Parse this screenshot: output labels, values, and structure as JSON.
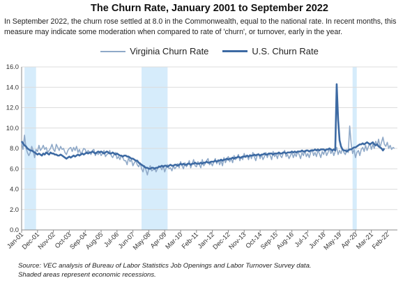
{
  "header": {
    "title": "The Churn Rate, January 2001 to September 2022",
    "subtitle": "In September 2022, the churn rose settled at 8.0 in the Commonwealth, equal to the national rate. In recent months, this measure may indicate some moderation when compared to rate of 'churn', or turnover, early in the year."
  },
  "footnote": {
    "line1": "Source: VEC analysis of Bureau of Labor Statistics Job Openings and Labor Turnover Survey data.",
    "line2": "Shaded areas represent economic recessions."
  },
  "colors": {
    "virginia": "#8fa9c8",
    "us": "#3d6aa3",
    "recession": "#d6ecfb",
    "axis": "#888888"
  },
  "chart_data": {
    "type": "line",
    "ylim": [
      0,
      16
    ],
    "yticks": [
      "0.0",
      "2.0",
      "4.0",
      "6.0",
      "8.0",
      "10.0",
      "12.0",
      "14.0",
      "16.0"
    ],
    "start": "2001-01",
    "end": "2022-09",
    "xtick_labels": [
      "Jan-01",
      "Dec-01",
      "Nov-02",
      "Oct-03",
      "Sep-04",
      "Aug-05",
      "Jul-06",
      "Jun-07",
      "May-08",
      "Apr-09",
      "Mar-10",
      "Feb-11",
      "Jan-12",
      "Dec-12",
      "Nov-13",
      "Oct-14",
      "Sep-15",
      "Aug-16",
      "Jul-17",
      "Jun-18",
      "May-19",
      "Apr-20",
      "Mar-21",
      "Feb-22"
    ],
    "recessions": [
      [
        "2001-03",
        "2001-11"
      ],
      [
        "2007-12",
        "2009-06"
      ],
      [
        "2020-02",
        "2020-04"
      ]
    ],
    "grid": true,
    "legend": "top-center",
    "series": [
      {
        "name": "Virginia Churn Rate",
        "values": [
          8.6,
          7.9,
          9.3,
          8.1,
          7.6,
          7.3,
          7.6,
          8.2,
          7.8,
          7.1,
          7.9,
          7.7,
          8.3,
          7.8,
          8.0,
          8.3,
          7.9,
          8.1,
          7.6,
          7.8,
          8.0,
          8.4,
          7.9,
          7.7,
          8.4,
          8.1,
          7.8,
          8.2,
          7.9,
          8.0,
          7.6,
          7.4,
          7.8,
          8.0,
          8.1,
          7.7,
          8.1,
          7.8,
          8.2,
          7.6,
          7.9,
          7.4,
          7.7,
          8.0,
          7.9,
          7.5,
          7.8,
          7.6,
          7.4,
          7.8,
          7.9,
          7.3,
          7.6,
          7.4,
          7.7,
          7.3,
          7.5,
          7.8,
          7.2,
          7.4,
          7.5,
          7.8,
          7.3,
          7.1,
          7.4,
          7.6,
          7.0,
          7.2,
          6.9,
          7.3,
          7.1,
          6.8,
          6.8,
          6.4,
          7.1,
          6.7,
          6.9,
          6.3,
          6.6,
          6.8,
          6.4,
          6.2,
          6.6,
          6.0,
          5.7,
          6.3,
          5.9,
          5.4,
          6.0,
          6.3,
          5.8,
          5.9,
          6.1,
          5.7,
          6.0,
          6.3,
          6.2,
          5.9,
          6.3,
          5.7,
          6.1,
          6.4,
          6.0,
          6.1,
          5.8,
          6.3,
          6.0,
          6.2,
          6.5,
          6.1,
          6.7,
          6.3,
          6.0,
          6.6,
          6.2,
          6.4,
          6.8,
          6.1,
          6.5,
          6.9,
          6.3,
          6.2,
          6.7,
          6.4,
          6.1,
          6.9,
          6.3,
          6.5,
          6.8,
          7.0,
          6.4,
          6.6,
          6.3,
          6.7,
          7.0,
          6.5,
          6.9,
          6.4,
          6.8,
          6.3,
          7.1,
          6.6,
          6.9,
          7.2,
          6.7,
          7.0,
          6.6,
          7.3,
          6.9,
          7.1,
          7.4,
          6.8,
          7.2,
          6.9,
          7.5,
          7.1,
          7.3,
          6.9,
          7.4,
          7.0,
          7.6,
          7.2,
          6.8,
          7.3,
          7.5,
          7.0,
          7.4,
          6.9,
          7.2,
          7.6,
          7.1,
          7.5,
          7.3,
          6.9,
          7.7,
          7.2,
          7.4,
          7.0,
          7.6,
          7.3,
          7.1,
          7.5,
          7.8,
          7.2,
          7.4,
          7.0,
          7.3,
          7.6,
          7.1,
          7.5,
          7.2,
          7.7,
          7.4,
          7.0,
          7.6,
          7.3,
          7.8,
          7.2,
          7.5,
          7.1,
          7.6,
          7.9,
          7.3,
          7.6,
          7.2,
          7.8,
          7.5,
          7.1,
          7.7,
          7.4,
          7.9,
          7.3,
          7.6,
          8.0,
          7.5,
          7.8,
          7.3,
          7.7,
          8.1,
          7.4,
          7.8,
          7.5,
          8.0,
          7.6,
          7.4,
          7.9,
          7.6,
          10.2,
          8.5,
          7.5,
          7.9,
          7.1,
          7.6,
          7.8,
          7.3,
          7.9,
          8.1,
          7.7,
          8.3,
          7.8,
          8.2,
          8.5,
          7.9,
          8.4,
          8.0,
          8.7,
          8.3,
          8.9,
          8.1,
          8.6,
          9.1,
          8.4,
          8.2,
          8.6,
          8.0,
          8.3,
          7.9,
          8.1,
          8.0
        ]
      },
      {
        "name": "U.S. Churn Rate",
        "values": [
          8.7,
          8.5,
          8.3,
          8.2,
          8.0,
          7.9,
          7.8,
          7.8,
          7.7,
          7.6,
          7.5,
          7.4,
          7.5,
          7.4,
          7.3,
          7.5,
          7.4,
          7.6,
          7.5,
          7.4,
          7.6,
          7.5,
          7.5,
          7.4,
          7.4,
          7.3,
          7.3,
          7.4,
          7.3,
          7.2,
          7.1,
          7.0,
          7.1,
          7.2,
          7.1,
          7.2,
          7.3,
          7.2,
          7.3,
          7.4,
          7.3,
          7.4,
          7.5,
          7.4,
          7.5,
          7.6,
          7.5,
          7.6,
          7.6,
          7.7,
          7.6,
          7.5,
          7.6,
          7.7,
          7.6,
          7.7,
          7.6,
          7.5,
          7.6,
          7.7,
          7.6,
          7.5,
          7.5,
          7.6,
          7.5,
          7.4,
          7.5,
          7.4,
          7.3,
          7.3,
          7.2,
          7.3,
          7.3,
          7.2,
          7.2,
          7.1,
          7.0,
          7.0,
          6.9,
          6.8,
          6.8,
          6.6,
          6.5,
          6.4,
          6.3,
          6.2,
          6.1,
          6.1,
          6.0,
          6.0,
          6.1,
          6.1,
          6.0,
          6.1,
          6.1,
          6.2,
          6.2,
          6.3,
          6.2,
          6.3,
          6.3,
          6.2,
          6.3,
          6.4,
          6.3,
          6.3,
          6.4,
          6.4,
          6.3,
          6.4,
          6.5,
          6.4,
          6.5,
          6.4,
          6.4,
          6.5,
          6.5,
          6.4,
          6.5,
          6.5,
          6.6,
          6.5,
          6.5,
          6.5,
          6.6,
          6.5,
          6.6,
          6.6,
          6.7,
          6.6,
          6.6,
          6.7,
          6.7,
          6.7,
          6.8,
          6.7,
          6.8,
          6.8,
          6.9,
          6.8,
          6.9,
          6.9,
          7.0,
          6.9,
          7.0,
          7.0,
          7.1,
          7.0,
          7.1,
          7.1,
          7.2,
          7.1,
          7.1,
          7.2,
          7.2,
          7.2,
          7.3,
          7.2,
          7.3,
          7.3,
          7.3,
          7.4,
          7.3,
          7.4,
          7.4,
          7.3,
          7.4,
          7.4,
          7.5,
          7.4,
          7.4,
          7.5,
          7.5,
          7.5,
          7.4,
          7.5,
          7.5,
          7.5,
          7.6,
          7.5,
          7.5,
          7.6,
          7.6,
          7.5,
          7.6,
          7.6,
          7.6,
          7.7,
          7.6,
          7.7,
          7.6,
          7.7,
          7.7,
          7.7,
          7.8,
          7.7,
          7.7,
          7.8,
          7.8,
          7.7,
          7.8,
          7.8,
          7.8,
          7.9,
          7.8,
          7.9,
          7.8,
          7.9,
          7.9,
          7.9,
          7.8,
          7.9,
          7.9,
          8.0,
          7.9,
          7.8,
          7.9,
          7.8,
          14.3,
          10.8,
          8.8,
          8.2,
          7.9,
          7.8,
          7.8,
          7.7,
          7.8,
          7.9,
          7.9,
          8.0,
          8.1,
          8.1,
          8.2,
          8.3,
          8.4,
          8.4,
          8.5,
          8.4,
          8.5,
          8.6,
          8.5,
          8.4,
          8.5,
          8.6,
          8.4,
          8.3,
          8.4,
          8.2,
          8.1,
          8.0,
          7.8,
          8.0
        ]
      }
    ]
  }
}
